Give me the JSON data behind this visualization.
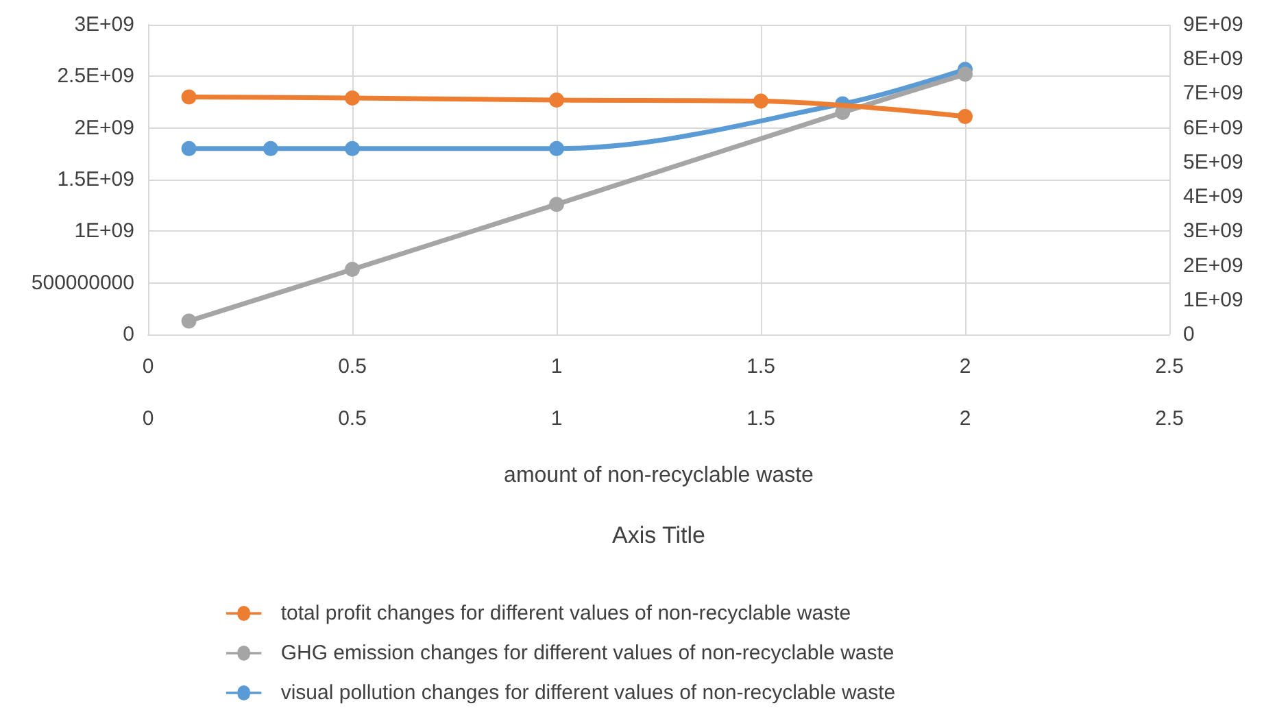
{
  "chart_data": {
    "type": "line",
    "xlabel": "amount of non-recyclable waste",
    "x2label": "Axis Title",
    "xlim": [
      0,
      2.5
    ],
    "xticks": [
      0,
      0.5,
      1,
      1.5,
      2,
      2.5
    ],
    "x2lim": [
      0,
      2.5
    ],
    "x2ticks": [
      0,
      0.5,
      1,
      1.5,
      2,
      2.5
    ],
    "ylim": [
      0,
      3000000000
    ],
    "yticks": [
      0,
      500000000,
      {
        "value": 1000000000,
        "label": "1E+09"
      },
      {
        "value": 1500000000,
        "label": "1.5E+09"
      },
      {
        "value": 2000000000,
        "label": "2E+09"
      },
      {
        "value": 2500000000,
        "label": "2.5E+09"
      },
      {
        "value": 3000000000,
        "label": "3E+09"
      }
    ],
    "y2lim": [
      0,
      9000000000
    ],
    "y2ticks": [
      0,
      {
        "value": 1000000000,
        "label": "1E+09"
      },
      {
        "value": 2000000000,
        "label": "2E+09"
      },
      {
        "value": 3000000000,
        "label": "3E+09"
      },
      {
        "value": 4000000000,
        "label": "4E+09"
      },
      {
        "value": 5000000000,
        "label": "5E+09"
      },
      {
        "value": 6000000000,
        "label": "6E+09"
      },
      {
        "value": 7000000000,
        "label": "7E+09"
      },
      {
        "value": 8000000000,
        "label": "8E+09"
      },
      {
        "value": 9000000000,
        "label": "9E+09"
      }
    ],
    "grid": true,
    "legend": "bottom",
    "marker": "circle",
    "line_style": "solid",
    "series": [
      {
        "name": "total profit changes for different values of non-recyclable waste",
        "color": "#ed7d31",
        "x": [
          0.1,
          0.5,
          1,
          1.5,
          2
        ],
        "values": [
          2300000000,
          2290000000,
          2270000000,
          2260000000,
          2110000000
        ]
      },
      {
        "name": "GHG emission changes for different values of non-recyclable waste",
        "color": "#a5a5a5",
        "x": [
          0.1,
          0.5,
          1,
          1.7,
          2
        ],
        "values": [
          130000000,
          630000000,
          1260000000,
          2150000000,
          2520000000
        ]
      },
      {
        "name": "visual pollution changes for different values of non-recyclable waste",
        "color": "#5b9bd5",
        "axis": "y2",
        "x": [
          0.1,
          0.3,
          0.5,
          1,
          1.7,
          2
        ],
        "values": [
          5400000000,
          5400000000,
          5400000000,
          5400000000,
          6700000000,
          7700000000
        ]
      }
    ]
  }
}
